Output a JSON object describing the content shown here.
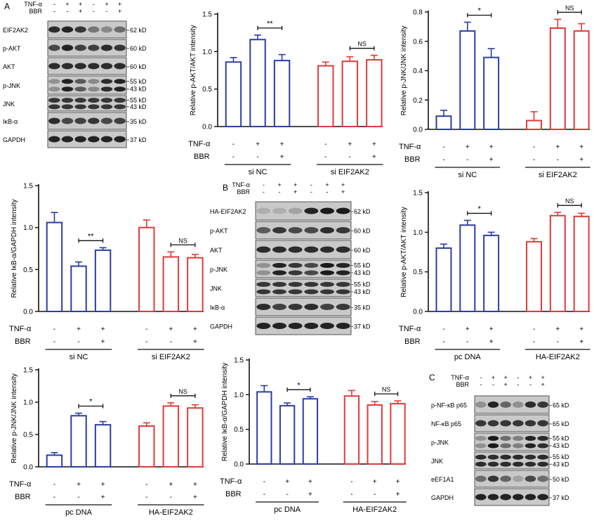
{
  "figure": {
    "panel_labels": [
      "A",
      "B",
      "C"
    ],
    "colors": {
      "group1": "#2b3ea3",
      "group2": "#e03a3a",
      "axis": "#111111"
    }
  },
  "blots": [
    {
      "id": "A",
      "conditions": [
        {
          "label": "TNF-α",
          "signs": [
            "-",
            "+",
            "+",
            "-",
            "+",
            "+"
          ]
        },
        {
          "label": "BBR",
          "signs": [
            "-",
            "-",
            "+",
            "-",
            "-",
            "+"
          ]
        }
      ],
      "rows": [
        {
          "protein": "EIF2AK2",
          "sizes": [
            "62 kD"
          ]
        },
        {
          "protein": "p-AKT",
          "sizes": [
            "60 kD"
          ]
        },
        {
          "protein": "AKT",
          "sizes": [
            "60 kD"
          ]
        },
        {
          "protein": "p-JNK",
          "sizes": [
            "55 kD",
            "43 kD"
          ]
        },
        {
          "protein": "JNK",
          "sizes": [
            "55 kD",
            "43 kD"
          ]
        },
        {
          "protein": "IκB-α",
          "sizes": [
            "35 kD"
          ]
        },
        {
          "protein": "GAPDH",
          "sizes": [
            "37 kD"
          ]
        }
      ]
    },
    {
      "id": "B",
      "conditions": [
        {
          "label": "TNF-α",
          "signs": [
            "-",
            "+",
            "+",
            "-",
            "+",
            "+"
          ]
        },
        {
          "label": "BBR",
          "signs": [
            "-",
            "-",
            "+",
            "-",
            "-",
            "+"
          ]
        }
      ],
      "rows": [
        {
          "protein": "HA-EIF2AK2",
          "sizes": [
            "62 kD"
          ]
        },
        {
          "protein": "p-AKT",
          "sizes": [
            "60 kD"
          ]
        },
        {
          "protein": "AKT",
          "sizes": [
            "60 kD"
          ]
        },
        {
          "protein": "p-JNK",
          "sizes": [
            "55 kD",
            "43 kD"
          ]
        },
        {
          "protein": "JNK",
          "sizes": [
            "55 kD",
            "43 kD"
          ]
        },
        {
          "protein": "IκB-α",
          "sizes": [
            "35 kD"
          ]
        },
        {
          "protein": "GAPDH",
          "sizes": [
            "37 kD"
          ]
        }
      ]
    },
    {
      "id": "C",
      "conditions": [
        {
          "label": "TNF-α",
          "signs": [
            "-",
            "+",
            "+",
            "-",
            "+",
            "+"
          ]
        },
        {
          "label": "BBR",
          "signs": [
            "-",
            "-",
            "+",
            "-",
            "-",
            "+"
          ]
        }
      ],
      "rows": [
        {
          "protein": "p-NF-κB p65",
          "sizes": [
            "65 kD"
          ]
        },
        {
          "protein": "NF-κB p65",
          "sizes": [
            "65 kD"
          ]
        },
        {
          "protein": "p-JNK",
          "sizes": [
            "55 kD",
            "43 kD"
          ]
        },
        {
          "protein": "JNK",
          "sizes": [
            "55 kD",
            "43 kD"
          ]
        },
        {
          "protein": "eEF1A1",
          "sizes": [
            "50 kD"
          ]
        },
        {
          "protein": "GAPDH",
          "sizes": [
            "37 kD"
          ]
        }
      ]
    }
  ],
  "chart_data": [
    {
      "type": "bar",
      "panel": "A",
      "ylabel": "Relative p-AKT/AKT intensity",
      "ylim": [
        0,
        1.5
      ],
      "yticks": [
        "0.0",
        "0.5",
        "1.0",
        "1.5"
      ],
      "values": [
        0.86,
        1.16,
        0.88,
        0.81,
        0.87,
        0.89
      ],
      "errors": [
        0.06,
        0.06,
        0.08,
        0.05,
        0.06,
        0.06
      ],
      "tnf": [
        "-",
        "+",
        "+",
        "-",
        "+",
        "+"
      ],
      "bbr": [
        "-",
        "-",
        "+",
        "-",
        "-",
        "+"
      ],
      "row_labels": [
        "TNF-α",
        "BBR"
      ],
      "groups": [
        "si NC",
        "si  EIF2AK2"
      ],
      "significance": [
        {
          "from": 1,
          "to": 2,
          "label": "**"
        },
        {
          "from": 4,
          "to": 5,
          "label": "NS"
        }
      ]
    },
    {
      "type": "bar",
      "panel": "A",
      "ylabel": "Relative p-JNK/JNK intensity",
      "ylim": [
        0,
        0.8
      ],
      "yticks": [
        "0.0",
        "0.2",
        "0.4",
        "0.6",
        "0.8"
      ],
      "values": [
        0.09,
        0.67,
        0.49,
        0.06,
        0.69,
        0.67
      ],
      "errors": [
        0.04,
        0.06,
        0.06,
        0.06,
        0.06,
        0.05
      ],
      "tnf": [
        "-",
        "+",
        "+",
        "-",
        "+",
        "+"
      ],
      "bbr": [
        "-",
        "-",
        "+",
        "-",
        "-",
        "+"
      ],
      "row_labels": [
        "TNF-α",
        "BBR"
      ],
      "groups": [
        "si NC",
        "si  EIF2AK2"
      ],
      "significance": [
        {
          "from": 1,
          "to": 2,
          "label": "*"
        },
        {
          "from": 4,
          "to": 5,
          "label": "NS"
        }
      ]
    },
    {
      "type": "bar",
      "panel": "A",
      "ylabel": "Relative IκB-α/GAPDH intensity",
      "ylim": [
        0,
        1.5
      ],
      "yticks": [
        "0.0",
        "0.5",
        "1.0",
        "1.5"
      ],
      "values": [
        1.06,
        0.54,
        0.73,
        1.0,
        0.65,
        0.64
      ],
      "errors": [
        0.12,
        0.05,
        0.03,
        0.09,
        0.06,
        0.04
      ],
      "tnf": [
        "-",
        "+",
        "+",
        "-",
        "+",
        "+"
      ],
      "bbr": [
        "-",
        "-",
        "+",
        "-",
        "-",
        "+"
      ],
      "row_labels": [
        "TNF-α",
        "BBR"
      ],
      "groups": [
        "si NC",
        "si  EIF2AK2"
      ],
      "significance": [
        {
          "from": 1,
          "to": 2,
          "label": "**"
        },
        {
          "from": 4,
          "to": 5,
          "label": "NS"
        }
      ]
    },
    {
      "type": "bar",
      "panel": "B",
      "ylabel": "Relative p-AKT/AKT intensity",
      "ylim": [
        0,
        1.5
      ],
      "yticks": [
        "0.0",
        "0.5",
        "1.0",
        "1.5"
      ],
      "values": [
        0.8,
        1.09,
        0.96,
        0.88,
        1.21,
        1.2
      ],
      "errors": [
        0.05,
        0.06,
        0.04,
        0.04,
        0.04,
        0.04
      ],
      "tnf": [
        "-",
        "+",
        "+",
        "-",
        "+",
        "+"
      ],
      "bbr": [
        "-",
        "-",
        "+",
        "-",
        "-",
        "+"
      ],
      "row_labels": [
        "TNF-α",
        "BBR"
      ],
      "groups": [
        "pc DNA",
        "HA-EIF2AK2"
      ],
      "significance": [
        {
          "from": 1,
          "to": 2,
          "label": "*"
        },
        {
          "from": 4,
          "to": 5,
          "label": "NS"
        }
      ]
    },
    {
      "type": "bar",
      "panel": "B",
      "ylabel": "Relative p-JNK/JNK intensity",
      "ylim": [
        0,
        1.5
      ],
      "yticks": [
        "0.0",
        "0.5",
        "1.0",
        "1.5"
      ],
      "values": [
        0.18,
        0.79,
        0.65,
        0.63,
        0.94,
        0.91
      ],
      "errors": [
        0.04,
        0.04,
        0.05,
        0.05,
        0.05,
        0.05
      ],
      "tnf": [
        "-",
        "+",
        "+",
        "-",
        "+",
        "+"
      ],
      "bbr": [
        "-",
        "-",
        "+",
        "-",
        "-",
        "+"
      ],
      "row_labels": [
        "TNF-α",
        "BBR"
      ],
      "groups": [
        "pc DNA",
        "HA-EIF2AK2"
      ],
      "significance": [
        {
          "from": 1,
          "to": 2,
          "label": "*"
        },
        {
          "from": 4,
          "to": 5,
          "label": "NS"
        }
      ]
    },
    {
      "type": "bar",
      "panel": "B",
      "ylabel": "Relative IκB-α/GAPDH intensity",
      "ylim": [
        0,
        1.5
      ],
      "yticks": [
        "0.0",
        "0.5",
        "1.0",
        "1.5"
      ],
      "values": [
        1.04,
        0.84,
        0.94,
        0.98,
        0.85,
        0.87
      ],
      "errors": [
        0.09,
        0.04,
        0.03,
        0.08,
        0.05,
        0.04
      ],
      "tnf": [
        "-",
        "+",
        "+",
        "-",
        "+",
        "+"
      ],
      "bbr": [
        "-",
        "-",
        "+",
        "-",
        "-",
        "+"
      ],
      "row_labels": [
        "TNF-α",
        "BBR"
      ],
      "groups": [
        "pc DNA",
        "HA-EIF2AK2"
      ],
      "significance": [
        {
          "from": 1,
          "to": 2,
          "label": "*"
        },
        {
          "from": 4,
          "to": 5,
          "label": "NS"
        }
      ]
    }
  ]
}
